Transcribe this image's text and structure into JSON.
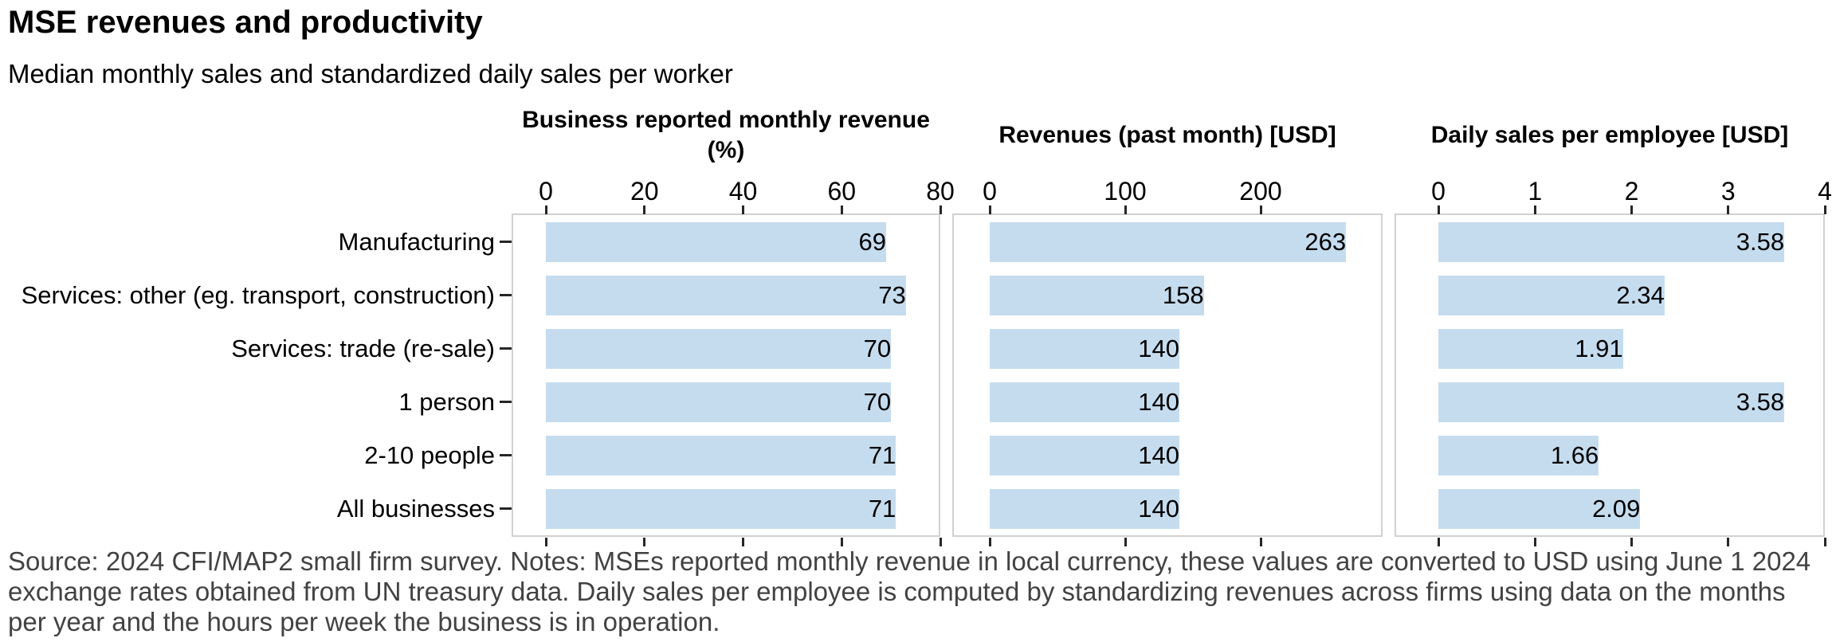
{
  "title": "MSE revenues and productivity",
  "subtitle": "Median monthly sales and standardized daily sales per worker",
  "source_note": "Source: 2024 CFI/MAP2 small firm survey. Notes: MSEs reported monthly revenue in local currency, these values are converted to USD using June 1 2024 exchange rates obtained from UN treasury data. Daily sales per employee is computed by standardizing revenues across firms using data on the months per year and the hours per week the business is in operation.",
  "chart_data": {
    "type": "bar",
    "orientation": "horizontal",
    "grid": false,
    "legend": "none",
    "bar_color": "#c5dcee",
    "axis_color": "#262626",
    "panel_border_color": "#d1d1d1",
    "categories": [
      "Manufacturing",
      "Services: other (eg. transport, construction)",
      "Services: trade (re-sale)",
      "1 person",
      "2-10 people",
      "All businesses"
    ],
    "panels": [
      {
        "title": "Business reported monthly revenue (%)",
        "xlim": [
          0,
          80
        ],
        "ticks": [
          0,
          20,
          40,
          60,
          80
        ],
        "values": [
          69,
          73,
          70,
          70,
          71,
          71
        ]
      },
      {
        "title": "Revenues (past month) [USD]",
        "xlim": [
          0,
          290
        ],
        "ticks": [
          0,
          100,
          200
        ],
        "values": [
          263,
          158,
          140,
          140,
          140,
          140
        ]
      },
      {
        "title": "Daily sales per employee [USD]",
        "xlim": [
          0,
          4
        ],
        "ticks": [
          0,
          1,
          2,
          3,
          4
        ],
        "values": [
          3.58,
          2.34,
          1.91,
          3.58,
          1.66,
          2.09
        ]
      }
    ]
  }
}
